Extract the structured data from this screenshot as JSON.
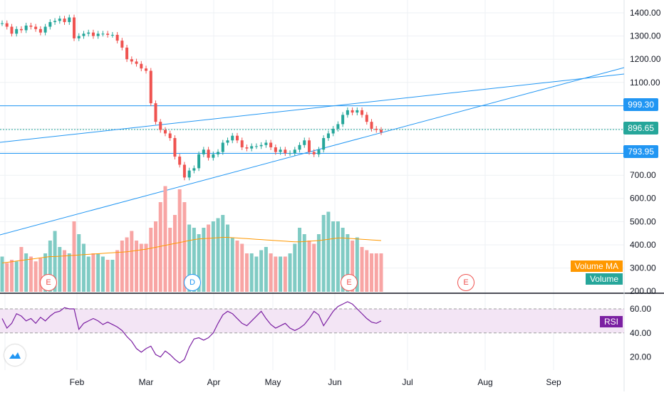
{
  "chart_data": {
    "type": "candlestick",
    "price_axis": {
      "ticks": [
        "1400.00",
        "1300.00",
        "1200.00",
        "1100.00",
        "999.30",
        "896.65",
        "793.95",
        "700.00",
        "600.00",
        "500.00",
        "400.00",
        "300.00",
        "200.00"
      ],
      "ylim": [
        180,
        1440
      ]
    },
    "horizontal_lines": [
      {
        "label": "999.30",
        "value": 999.3,
        "style": "solid",
        "color": "#2196f3"
      },
      {
        "label": "896.65",
        "value": 896.65,
        "style": "dotted",
        "color": "#26a69a"
      },
      {
        "label": "793.95",
        "value": 793.95,
        "style": "solid",
        "color": "#2196f3"
      }
    ],
    "x_labels": [
      "Feb",
      "Mar",
      "Apr",
      "May",
      "Jun",
      "Jul",
      "Aug",
      "Sep"
    ],
    "close_series": [
      1355,
      1340,
      1310,
      1330,
      1325,
      1345,
      1340,
      1330,
      1315,
      1340,
      1360,
      1365,
      1375,
      1360,
      1380,
      1290,
      1300,
      1310,
      1315,
      1300,
      1310,
      1310,
      1305,
      1305,
      1280,
      1250,
      1200,
      1190,
      1180,
      1160,
      1150,
      1010,
      930,
      895,
      880,
      860,
      780,
      745,
      690,
      720,
      730,
      790,
      810,
      775,
      790,
      800,
      840,
      850,
      870,
      850,
      820,
      815,
      825,
      825,
      830,
      840,
      820,
      800,
      810,
      795,
      795,
      810,
      830,
      850,
      800,
      790,
      810,
      860,
      880,
      900,
      920,
      960,
      980,
      970,
      980,
      960,
      930,
      900,
      895,
      885
    ],
    "volume_series": [
      290,
      270,
      280,
      275,
      320,
      300,
      290,
      275,
      285,
      300,
      340,
      370,
      320,
      310,
      300,
      400,
      360,
      330,
      290,
      300,
      300,
      290,
      280,
      280,
      310,
      340,
      350,
      370,
      340,
      330,
      330,
      380,
      400,
      460,
      510,
      380,
      420,
      500,
      460,
      390,
      380,
      360,
      380,
      390,
      400,
      410,
      420,
      390,
      350,
      340,
      330,
      300,
      300,
      290,
      310,
      320,
      300,
      290,
      290,
      290,
      300,
      330,
      380,
      360,
      340,
      330,
      360,
      420,
      430,
      400,
      400,
      380,
      360,
      340,
      350,
      320,
      310,
      300,
      300,
      300
    ],
    "volume_ma": [
      270,
      272,
      274,
      276,
      278,
      280,
      282,
      284,
      286,
      288,
      290,
      290,
      291,
      292,
      293,
      294,
      295,
      296,
      297,
      298,
      299,
      300,
      301,
      302,
      303,
      304,
      305,
      307,
      309,
      311,
      313,
      316,
      319,
      322,
      325,
      328,
      331,
      334,
      337,
      340,
      343,
      345,
      346,
      347,
      348,
      349,
      350,
      350,
      349,
      348,
      347,
      346,
      345,
      344,
      343,
      342,
      341,
      340,
      339,
      338,
      337,
      336,
      336,
      337,
      338,
      339,
      340,
      342,
      344,
      346,
      348,
      348,
      347,
      346,
      345,
      344,
      343,
      342,
      341,
      340
    ],
    "rsi_series": [
      52,
      44,
      48,
      56,
      54,
      50,
      52,
      48,
      53,
      50,
      54,
      57,
      58,
      61,
      60,
      60,
      43,
      48,
      50,
      52,
      50,
      47,
      49,
      47,
      45,
      42,
      37,
      33,
      27,
      24,
      27,
      29,
      22,
      20,
      25,
      22,
      18,
      15,
      18,
      28,
      35,
      36,
      34,
      36,
      40,
      48,
      55,
      58,
      56,
      52,
      48,
      46,
      50,
      54,
      58,
      52,
      47,
      44,
      46,
      48,
      44,
      42,
      44,
      47,
      52,
      58,
      55,
      46,
      52,
      58,
      62,
      64,
      66,
      64,
      60,
      56,
      52,
      49,
      48,
      50
    ],
    "rsi_axis": {
      "ticks": [
        "60.00",
        "40.00",
        "20.00"
      ],
      "band": [
        40,
        60
      ]
    },
    "volume_axis_labels": [
      "Volume MA",
      "Volume"
    ],
    "rsi_label": "RSI",
    "events": [
      "E",
      "D",
      "E",
      "E"
    ]
  },
  "colors": {
    "up": "#26a69a",
    "down": "#ef5350",
    "line": "#2196f3",
    "rsi": "#7b1fa2",
    "rsi_band": "#f3e5f5",
    "vol_ma": "#ff9800"
  }
}
